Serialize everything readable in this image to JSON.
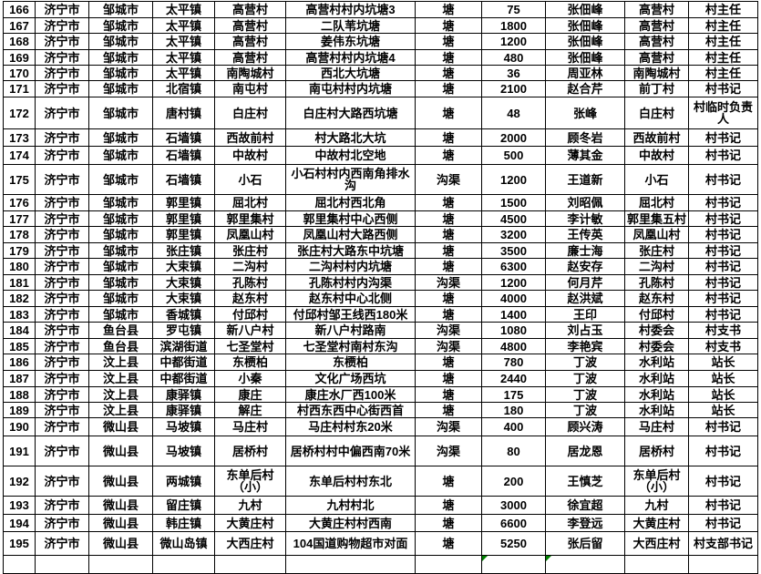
{
  "app": {
    "description": "spreadsheet table region of village pond/ditch registry",
    "visible_row_range": "166-195"
  },
  "colors": {
    "background": "#ffffff",
    "grid_border": "#000000",
    "text": "#000000",
    "error_triangle": "#008000"
  },
  "table": {
    "column_keys": [
      "no",
      "city",
      "county",
      "town",
      "village",
      "location",
      "type",
      "quantity",
      "person",
      "unit",
      "title"
    ],
    "rows": [
      {
        "no": "166",
        "city": "济宁市",
        "county": "邹城市",
        "town": "太平镇",
        "village": "高营村",
        "location": "高营村村内坑塘3",
        "type": "塘",
        "quantity": "75",
        "person": "张佃峰",
        "unit": "高营村",
        "title": "村主任",
        "quantity_flag": true
      },
      {
        "no": "167",
        "city": "济宁市",
        "county": "邹城市",
        "town": "太平镇",
        "village": "高营村",
        "location": "二队苇坑塘",
        "type": "塘",
        "quantity": "1800",
        "person": "张佃峰",
        "unit": "高营村",
        "title": "村主任",
        "quantity_flag": true
      },
      {
        "no": "168",
        "city": "济宁市",
        "county": "邹城市",
        "town": "太平镇",
        "village": "高营村",
        "location": "姜伟东坑塘",
        "type": "塘",
        "quantity": "1200",
        "person": "张佃峰",
        "unit": "高营村",
        "title": "村主任",
        "quantity_flag": true
      },
      {
        "no": "169",
        "city": "济宁市",
        "county": "邹城市",
        "town": "太平镇",
        "village": "高营村",
        "location": "高营村村内坑塘4",
        "type": "塘",
        "quantity": "480",
        "person": "张佃峰",
        "unit": "高营村",
        "title": "村主任",
        "quantity_flag": true
      },
      {
        "no": "170",
        "city": "济宁市",
        "county": "邹城市",
        "town": "太平镇",
        "village": "南陶城村",
        "location": "西北大坑塘",
        "type": "塘",
        "quantity": "36",
        "person": "周亚林",
        "unit": "南陶城村",
        "title": "村主任",
        "quantity_flag": true
      },
      {
        "no": "171",
        "city": "济宁市",
        "county": "邹城市",
        "town": "北宿镇",
        "village": "南屯村",
        "location": "南屯村村内坑塘",
        "type": "塘",
        "quantity": "2100",
        "person": "赵合芹",
        "unit": "前丁村",
        "title": "村书记",
        "quantity_flag": true
      },
      {
        "no": "172",
        "city": "济宁市",
        "county": "邹城市",
        "town": "唐村镇",
        "village": "白庄村",
        "location": "白庄村大路西坑塘",
        "type": "塘",
        "quantity": "48",
        "person": "张峰",
        "unit": "白庄村",
        "title": "村临时负责人",
        "quantity_flag": true
      },
      {
        "no": "173",
        "city": "济宁市",
        "county": "邹城市",
        "town": "石墙镇",
        "village": "西故前村",
        "location": "村大路北大坑",
        "type": "塘",
        "quantity": "2000",
        "person": "顾冬岩",
        "unit": "西故前村",
        "title": "村书记",
        "quantity_flag": true
      },
      {
        "no": "174",
        "city": "济宁市",
        "county": "邹城市",
        "town": "石墙镇",
        "village": "中故村",
        "location": "中故村北空地",
        "type": "塘",
        "quantity": "500",
        "person": "薄其金",
        "unit": "中故村",
        "title": "村书记",
        "quantity_flag": true
      },
      {
        "no": "175",
        "city": "济宁市",
        "county": "邹城市",
        "town": "石墙镇",
        "village": "小石",
        "location": "小石村村内西南角排水沟",
        "type": "沟渠",
        "quantity": "1200",
        "person": "王道新",
        "unit": "小石",
        "title": "村书记",
        "quantity_flag": true
      },
      {
        "no": "176",
        "city": "济宁市",
        "county": "邹城市",
        "town": "郭里镇",
        "village": "屈北村",
        "location": "屈北村西北角",
        "type": "塘",
        "quantity": "1500",
        "person": "刘昭佩",
        "unit": "屈北村",
        "title": "村书记",
        "quantity_flag": true
      },
      {
        "no": "177",
        "city": "济宁市",
        "county": "邹城市",
        "town": "郭里镇",
        "village": "郭里集村",
        "location": "郭里集村中心西侧",
        "type": "塘",
        "quantity": "4500",
        "person": "李计敏",
        "unit": "郭里集五村",
        "title": "村书记",
        "quantity_flag": true
      },
      {
        "no": "178",
        "city": "济宁市",
        "county": "邹城市",
        "town": "郭里镇",
        "village": "凤凰山村",
        "location": "凤凰山村大路西侧",
        "type": "塘",
        "quantity": "3200",
        "person": "王传英",
        "unit": "凤凰山村",
        "title": "村书记",
        "quantity_flag": true,
        "person_flag": true
      },
      {
        "no": "179",
        "city": "济宁市",
        "county": "邹城市",
        "town": "张庄镇",
        "village": "张庄村",
        "location": "张庄村大路东中坑塘",
        "type": "塘",
        "quantity": "3500",
        "person": "廉士海",
        "unit": "张庄村",
        "title": "村书记",
        "quantity_flag": true
      },
      {
        "no": "180",
        "city": "济宁市",
        "county": "邹城市",
        "town": "大束镇",
        "village": "二沟村",
        "location": "二沟村村内坑塘",
        "type": "塘",
        "quantity": "6300",
        "person": "赵安存",
        "unit": "二沟村",
        "title": "村书记",
        "quantity_flag": true
      },
      {
        "no": "181",
        "city": "济宁市",
        "county": "邹城市",
        "town": "大束镇",
        "village": "孔陈村",
        "location": "孔陈村村内沟渠",
        "type": "沟渠",
        "quantity": "1200",
        "person": "何月芹",
        "unit": "孔陈村",
        "title": "村书记",
        "quantity_flag": true
      },
      {
        "no": "182",
        "city": "济宁市",
        "county": "邹城市",
        "town": "大束镇",
        "village": "赵东村",
        "location": "赵东村中心北侧",
        "type": "塘",
        "quantity": "4000",
        "person": "赵洪斌",
        "unit": "赵东村",
        "title": "村书记",
        "quantity_flag": true
      },
      {
        "no": "183",
        "city": "济宁市",
        "county": "邹城市",
        "town": "香城镇",
        "village": "付邱村",
        "location": "付邱村邹王线西180米",
        "type": "塘",
        "quantity": "1400",
        "person": "王印",
        "unit": "付邱村",
        "title": "村书记",
        "quantity_flag": true
      },
      {
        "no": "184",
        "city": "济宁市",
        "county": "鱼台县",
        "town": "罗屯镇",
        "village": "新八户村",
        "location": "新八户村路南",
        "type": "沟渠",
        "quantity": "1080",
        "person": "刘占玉",
        "unit": "村委会",
        "title": "村支书",
        "quantity_flag": true
      },
      {
        "no": "185",
        "city": "济宁市",
        "county": "鱼台县",
        "town": "滨湖街道",
        "village": "七圣堂村",
        "location": "七圣堂村南村东沟",
        "type": "沟渠",
        "quantity": "4800",
        "person": "李艳宾",
        "unit": "村委会",
        "title": "村支书",
        "quantity_flag": true
      },
      {
        "no": "186",
        "city": "济宁市",
        "county": "汶上县",
        "town": "中都街道",
        "village": "东槚柏",
        "location": "东槚柏",
        "type": "塘",
        "quantity": "780",
        "person": "丁波",
        "unit": "水利站",
        "title": "站长",
        "quantity_flag": true
      },
      {
        "no": "187",
        "city": "济宁市",
        "county": "汶上县",
        "town": "中都街道",
        "village": "小秦",
        "location": "文化广场西坑",
        "type": "塘",
        "quantity": "2440",
        "person": "丁波",
        "unit": "水利站",
        "title": "站长",
        "quantity_flag": true
      },
      {
        "no": "188",
        "city": "济宁市",
        "county": "汶上县",
        "town": "康驿镇",
        "village": "康庄",
        "location": "康庄水厂西100米",
        "type": "塘",
        "quantity": "175",
        "person": "丁波",
        "unit": "水利站",
        "title": "站长",
        "quantity_flag": true
      },
      {
        "no": "189",
        "city": "济宁市",
        "county": "汶上县",
        "town": "康驿镇",
        "village": "解庄",
        "location": "村西东西中心街西首",
        "type": "塘",
        "quantity": "180",
        "person": "丁波",
        "unit": "水利站",
        "title": "站长",
        "quantity_flag": true
      },
      {
        "no": "190",
        "city": "济宁市",
        "county": "微山县",
        "town": "马坡镇",
        "village": "马庄村",
        "location": "马庄村村东20米",
        "type": "沟渠",
        "quantity": "400",
        "person": "顾兴涛",
        "unit": "马庄村",
        "title": "村书记",
        "quantity_flag": true
      },
      {
        "no": "191",
        "city": "济宁市",
        "county": "微山县",
        "town": "马坡镇",
        "village": "居桥村",
        "location": "居桥村村中偏西南70米",
        "type": "沟渠",
        "quantity": "80",
        "person": "居龙恩",
        "unit": "居桥村",
        "title": "村书记",
        "quantity_flag": true
      },
      {
        "no": "192",
        "city": "济宁市",
        "county": "微山县",
        "town": "两城镇",
        "village": "东单后村（小）",
        "location": "东单后村村东北",
        "type": "塘",
        "quantity": "200",
        "person": "王慎芝",
        "unit": "东单后村（小）",
        "title": "村书记",
        "quantity_flag": true
      },
      {
        "no": "193",
        "city": "济宁市",
        "county": "微山县",
        "town": "留庄镇",
        "village": "九村",
        "location": "九村村北",
        "type": "塘",
        "quantity": "3000",
        "person": "徐宜超",
        "unit": "九村",
        "title": "村书记",
        "quantity_flag": true
      },
      {
        "no": "194",
        "city": "济宁市",
        "county": "微山县",
        "town": "韩庄镇",
        "village": "大黄庄村",
        "location": "大黄庄村村西南",
        "type": "塘",
        "quantity": "6600",
        "person": "李登远",
        "unit": "大黄庄村",
        "title": "村书记",
        "quantity_flag": true
      },
      {
        "no": "195",
        "city": "济宁市",
        "county": "微山县",
        "town": "微山岛镇",
        "village": "大西庄村",
        "location": "104国道购物超市对面",
        "type": "塘",
        "quantity": "5250",
        "person": "张后留",
        "unit": "大西庄村",
        "title": "村支部书记",
        "quantity_flag": true
      }
    ],
    "partial_next_row": {
      "visible": "top sliver only",
      "quantity_flag": true,
      "person_flag": true
    }
  }
}
